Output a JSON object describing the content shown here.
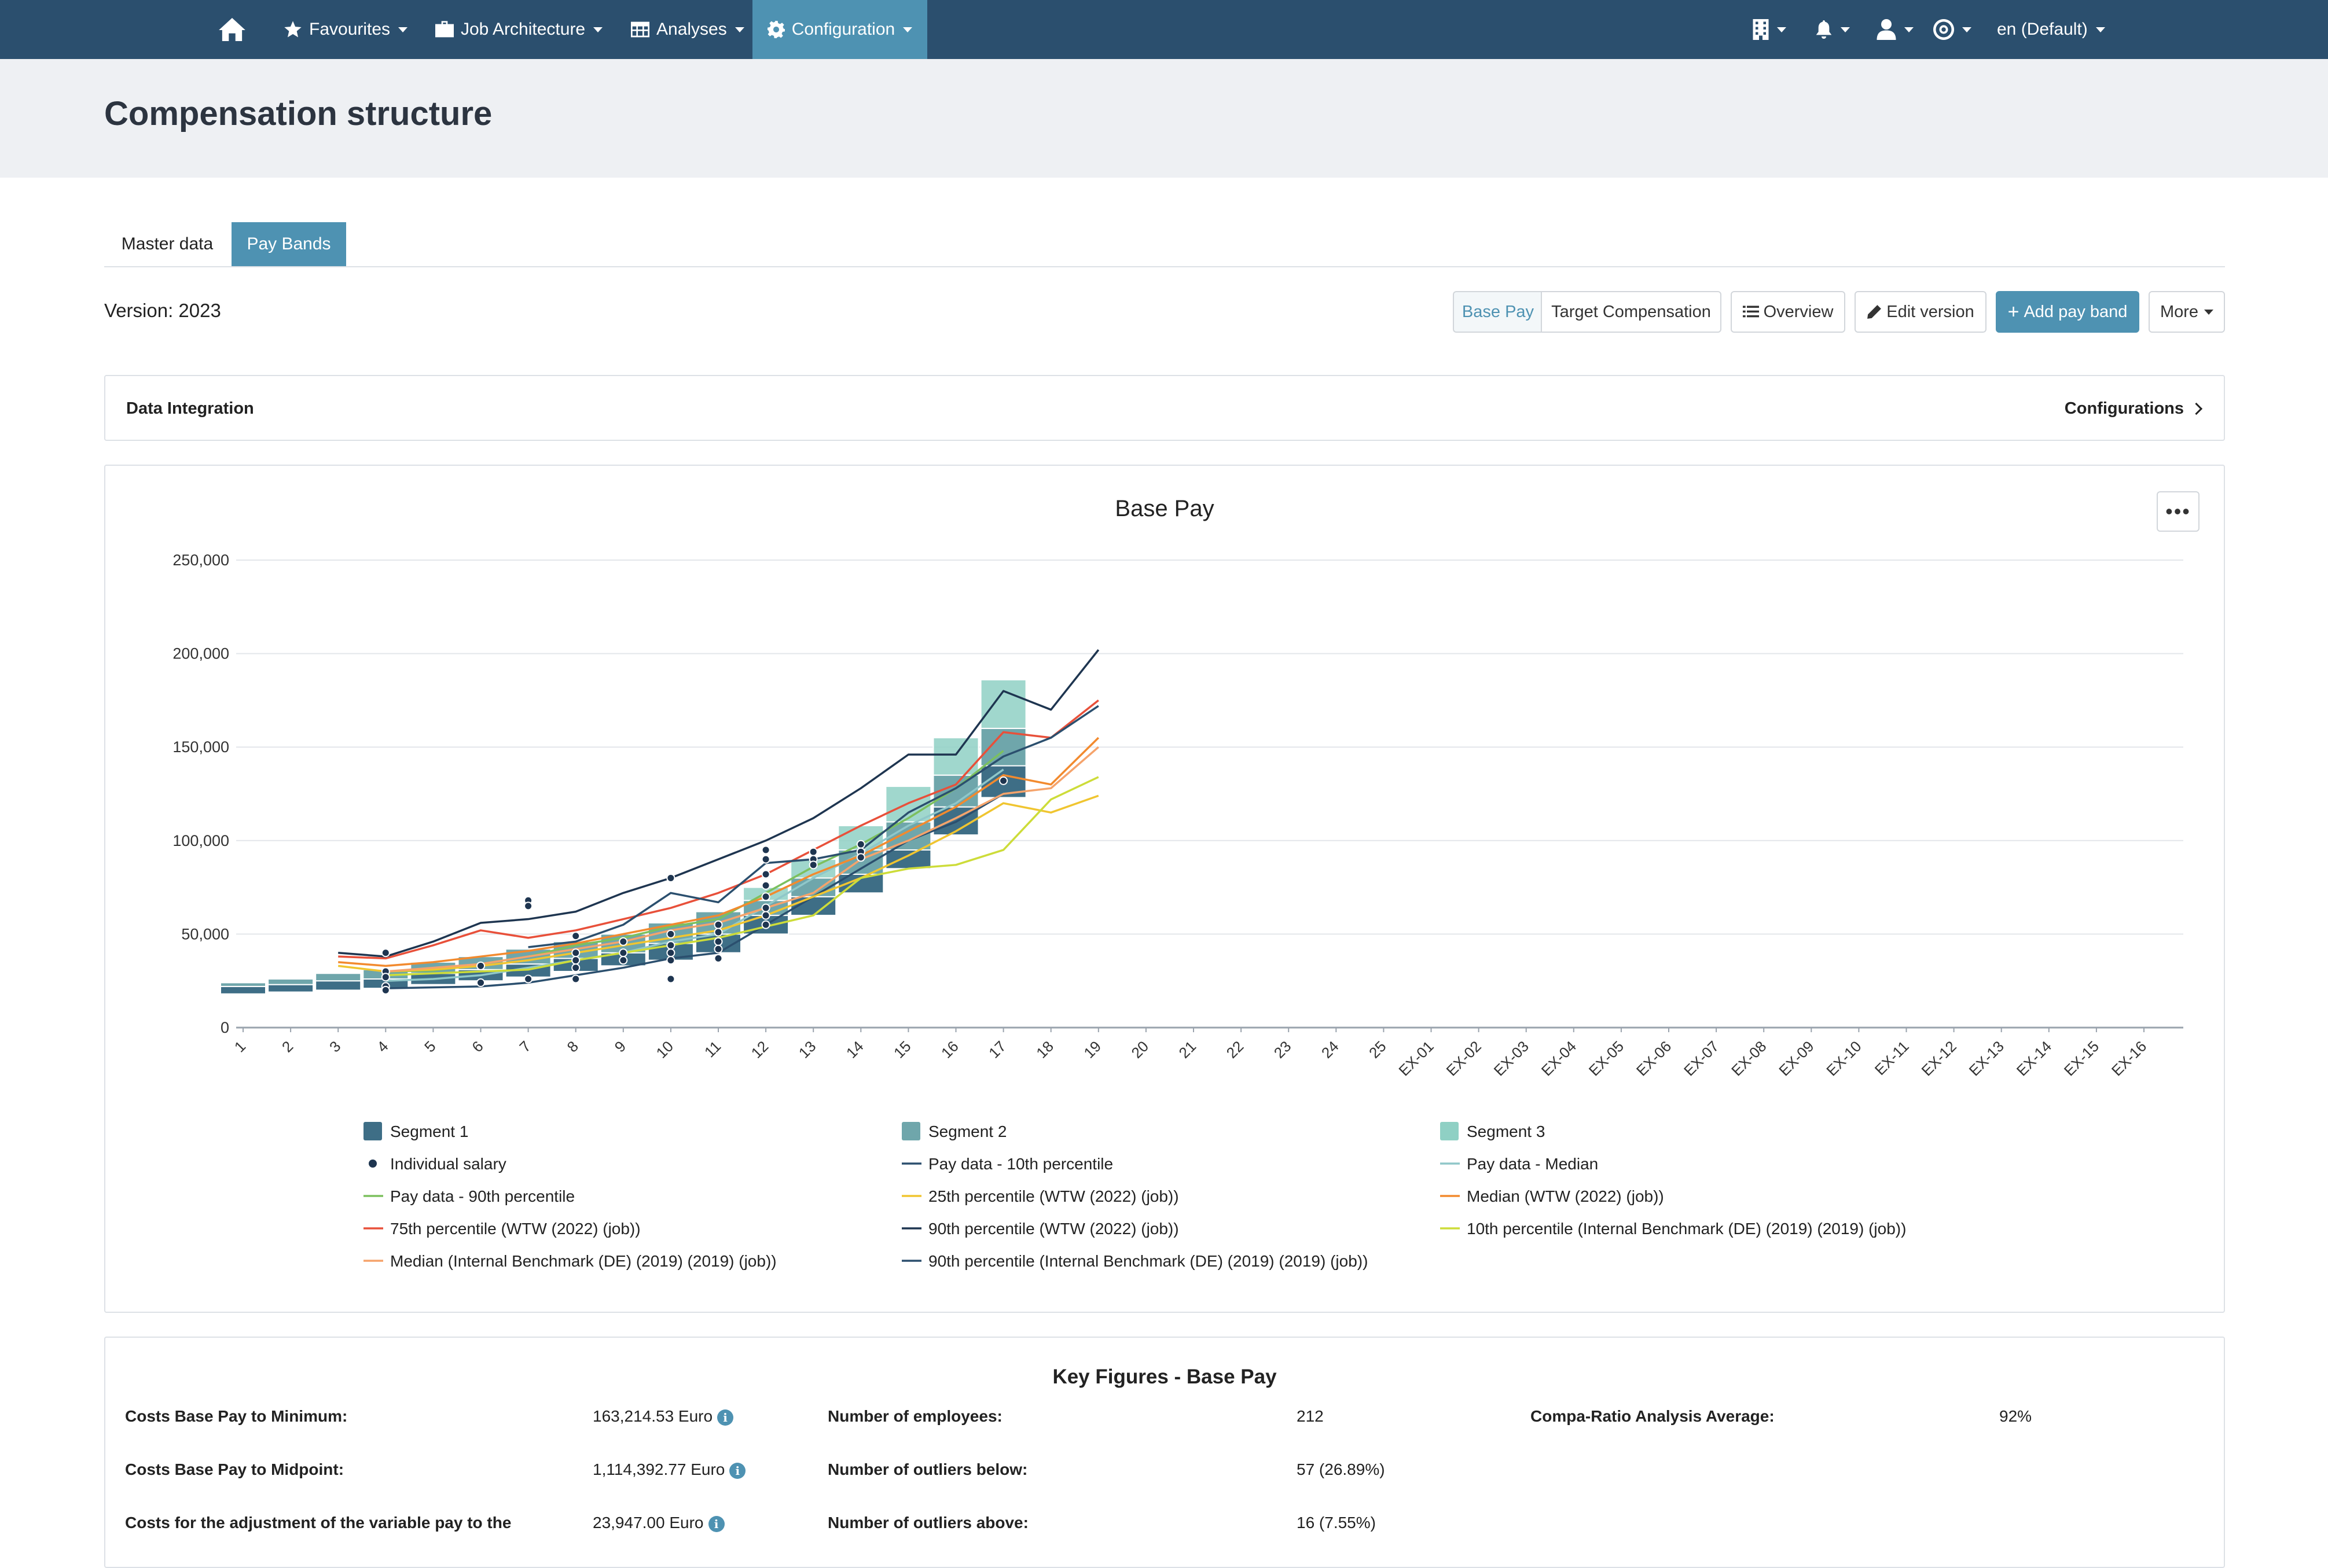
{
  "nav": {
    "items": [
      {
        "label": "Favourites",
        "icon": "star-icon"
      },
      {
        "label": "Job Architecture",
        "icon": "briefcase-icon"
      },
      {
        "label": "Analyses",
        "icon": "table-icon"
      },
      {
        "label": "Configuration",
        "icon": "gear-icon",
        "active": true
      }
    ],
    "language": "en (Default)",
    "right_icons": [
      "building-icon",
      "bell-icon",
      "user-icon",
      "help-circle-icon"
    ]
  },
  "page": {
    "title": "Compensation structure"
  },
  "tabs": [
    {
      "label": "Master data",
      "active": false
    },
    {
      "label": "Pay Bands",
      "active": true
    }
  ],
  "version_label": "Version: 2023",
  "toolbar": {
    "base_pay": "Base Pay",
    "target_comp": "Target Compensation",
    "overview": "Overview",
    "edit_version": "Edit version",
    "add_pay_band": "Add pay band",
    "more": "More"
  },
  "data_integration": {
    "title": "Data Integration",
    "link": "Configurations"
  },
  "chart_data": {
    "type": "bar",
    "title": "Base Pay",
    "ylim": [
      0,
      250000
    ],
    "yticks": [
      "250,000",
      "200,000",
      "150,000",
      "100,000",
      "50,000",
      "0"
    ],
    "ytick_values": [
      250000,
      200000,
      150000,
      100000,
      50000,
      0
    ],
    "categories": [
      "1",
      "2",
      "3",
      "4",
      "5",
      "6",
      "7",
      "8",
      "9",
      "10",
      "11",
      "12",
      "13",
      "14",
      "15",
      "16",
      "17",
      "18",
      "19",
      "20",
      "21",
      "22",
      "23",
      "24",
      "25",
      "EX-01",
      "EX-02",
      "EX-03",
      "EX-04",
      "EX-05",
      "EX-06",
      "EX-07",
      "EX-08",
      "EX-09",
      "EX-10",
      "EX-11",
      "EX-12",
      "EX-13",
      "EX-14",
      "EX-15",
      "EX-16"
    ],
    "bands": [
      {
        "grade": "1",
        "min": 18000,
        "s1": 22000,
        "s2": 24000,
        "max": 24000
      },
      {
        "grade": "2",
        "min": 19000,
        "s1": 23000,
        "s2": 26000,
        "max": 26000
      },
      {
        "grade": "3",
        "min": 20000,
        "s1": 25000,
        "s2": 29000,
        "max": 29000
      },
      {
        "grade": "4",
        "min": 21000,
        "s1": 26000,
        "s2": 31000,
        "max": 31000
      },
      {
        "grade": "5",
        "min": 23000,
        "s1": 29000,
        "s2": 35000,
        "max": 35000
      },
      {
        "grade": "6",
        "min": 25000,
        "s1": 31000,
        "s2": 38000,
        "max": 38000
      },
      {
        "grade": "7",
        "min": 27000,
        "s1": 34000,
        "s2": 42000,
        "max": 42000
      },
      {
        "grade": "8",
        "min": 30000,
        "s1": 37000,
        "s2": 46000,
        "max": 46000
      },
      {
        "grade": "9",
        "min": 33000,
        "s1": 40000,
        "s2": 50000,
        "max": 50000
      },
      {
        "grade": "10",
        "min": 36000,
        "s1": 45000,
        "s2": 56000,
        "max": 56000
      },
      {
        "grade": "11",
        "min": 40000,
        "s1": 50000,
        "s2": 62000,
        "max": 62000
      },
      {
        "grade": "12",
        "min": 50000,
        "s1": 60000,
        "s2": 68000,
        "max": 75000
      },
      {
        "grade": "13",
        "min": 60000,
        "s1": 70000,
        "s2": 80000,
        "max": 90000
      },
      {
        "grade": "14",
        "min": 72000,
        "s1": 82000,
        "s2": 95000,
        "max": 108000
      },
      {
        "grade": "15",
        "min": 85000,
        "s1": 95000,
        "s2": 110000,
        "max": 129000
      },
      {
        "grade": "16",
        "min": 103000,
        "s1": 118000,
        "s2": 135000,
        "max": 155000
      },
      {
        "grade": "17",
        "min": 123000,
        "s1": 140000,
        "s2": 160000,
        "max": 186000
      }
    ],
    "series": [
      {
        "name": "Pay data - 10th percentile",
        "color": "#2b4f6e",
        "x": [
          "4",
          "5",
          "6",
          "7",
          "8",
          "9",
          "10",
          "11",
          "12",
          "13",
          "14",
          "15",
          "16",
          "17"
        ],
        "values": [
          21000,
          21500,
          22000,
          24000,
          28000,
          32000,
          37000,
          40000,
          55000,
          70000,
          85000,
          100000,
          110000,
          125000
        ]
      },
      {
        "name": "Pay data - Median",
        "color": "#8fc7c9",
        "x": [
          "4",
          "5",
          "6",
          "7",
          "8",
          "9",
          "10",
          "11",
          "12",
          "13",
          "14",
          "15",
          "16",
          "17"
        ],
        "values": [
          25000,
          26000,
          28000,
          32000,
          36000,
          40000,
          46000,
          50000,
          65000,
          80000,
          93000,
          108000,
          120000,
          138000
        ]
      },
      {
        "name": "Pay data - 90th percentile",
        "color": "#7cc05e",
        "x": [
          "4",
          "5",
          "6",
          "7",
          "8",
          "9",
          "10",
          "11",
          "12",
          "13",
          "14",
          "15",
          "16",
          "17"
        ],
        "values": [
          30000,
          30500,
          34000,
          38000,
          44000,
          48000,
          54000,
          58000,
          72000,
          86000,
          98000,
          112000,
          128000,
          148000
        ]
      },
      {
        "name": "25th percentile (WTW (2022) (job))",
        "color": "#f0c530",
        "x": [
          "3",
          "4",
          "5",
          "6",
          "7",
          "8",
          "9",
          "10",
          "11",
          "12",
          "13",
          "14",
          "15",
          "16",
          "17",
          "18",
          "19"
        ],
        "values": [
          33000,
          30000,
          31000,
          33000,
          36000,
          40000,
          44000,
          48000,
          52000,
          60000,
          70000,
          80000,
          92000,
          105000,
          120000,
          115000,
          124000
        ]
      },
      {
        "name": "Median (WTW (2022) (job))",
        "color": "#f28a2e",
        "x": [
          "3",
          "4",
          "5",
          "6",
          "7",
          "8",
          "9",
          "10",
          "11",
          "12",
          "13",
          "14",
          "15",
          "16",
          "17",
          "18",
          "19"
        ],
        "values": [
          35000,
          33000,
          35000,
          38000,
          41000,
          45000,
          50000,
          55000,
          60000,
          70000,
          82000,
          92000,
          105000,
          118000,
          135000,
          130000,
          155000
        ]
      },
      {
        "name": "75th percentile (WTW (2022) (job))",
        "color": "#e8503a",
        "x": [
          "3",
          "4",
          "5",
          "6",
          "7",
          "8",
          "9",
          "10",
          "11",
          "12",
          "13",
          "14",
          "15",
          "16",
          "17",
          "18",
          "19"
        ],
        "values": [
          38000,
          37000,
          44000,
          52000,
          48000,
          52000,
          58000,
          64000,
          72000,
          82000,
          95000,
          108000,
          120000,
          130000,
          158000,
          155000,
          175000
        ]
      },
      {
        "name": "90th percentile (WTW (2022) (job))",
        "color": "#1e3550",
        "x": [
          "3",
          "4",
          "5",
          "6",
          "7",
          "8",
          "9",
          "10",
          "11",
          "12",
          "13",
          "14",
          "15",
          "16",
          "17",
          "18",
          "19"
        ],
        "values": [
          40000,
          38000,
          46000,
          56000,
          58000,
          62000,
          72000,
          80000,
          90000,
          100000,
          112000,
          128000,
          146000,
          146000,
          180000,
          170000,
          202000
        ]
      },
      {
        "name": "10th percentile (Internal Benchmark (DE) (2019) (2019) (job))",
        "color": "#cddc39",
        "x": [
          "4",
          "5",
          "6",
          "7",
          "8",
          "9",
          "10",
          "11",
          "12",
          "13",
          "14",
          "15",
          "16",
          "17",
          "18",
          "19"
        ],
        "values": [
          28000,
          29000,
          30000,
          31000,
          36000,
          40000,
          44000,
          48000,
          54000,
          60000,
          80000,
          85000,
          87000,
          95000,
          122000,
          134000
        ]
      },
      {
        "name": "Median (Internal Benchmark (DE) (2019) (2019) (job))",
        "color": "#f5a36b",
        "x": [
          "4",
          "5",
          "6",
          "7",
          "8",
          "9",
          "10",
          "11",
          "12",
          "13",
          "14",
          "15",
          "16",
          "17",
          "18",
          "19"
        ],
        "values": [
          30000,
          32000,
          34000,
          38000,
          42000,
          46000,
          52000,
          56000,
          64000,
          72000,
          90000,
          100000,
          112000,
          125000,
          128000,
          150000
        ]
      },
      {
        "name": "90th percentile (Internal Benchmark (DE) (2019) (2019) (job))",
        "color": "#2b4f6e",
        "x": [
          "7",
          "8",
          "9",
          "10",
          "11",
          "12",
          "13",
          "14",
          "15",
          "16",
          "17",
          "18",
          "19"
        ],
        "values": [
          43000,
          46000,
          55000,
          72000,
          67000,
          88000,
          90000,
          95000,
          115000,
          128000,
          145000,
          155000,
          172000
        ]
      }
    ],
    "individual_salaries": [
      [
        "4",
        40000
      ],
      [
        "4",
        30000
      ],
      [
        "4",
        27000
      ],
      [
        "4",
        22000
      ],
      [
        "4",
        20000
      ],
      [
        "6",
        33000
      ],
      [
        "6",
        24000
      ],
      [
        "7",
        68000
      ],
      [
        "7",
        65000
      ],
      [
        "7",
        26000
      ],
      [
        "8",
        49000
      ],
      [
        "8",
        40000
      ],
      [
        "8",
        36000
      ],
      [
        "8",
        32000
      ],
      [
        "8",
        26000
      ],
      [
        "9",
        46000
      ],
      [
        "9",
        40000
      ],
      [
        "9",
        36000
      ],
      [
        "10",
        80000
      ],
      [
        "10",
        50000
      ],
      [
        "10",
        44000
      ],
      [
        "10",
        40000
      ],
      [
        "10",
        36000
      ],
      [
        "10",
        26000
      ],
      [
        "11",
        55000
      ],
      [
        "11",
        51000
      ],
      [
        "11",
        46000
      ],
      [
        "11",
        42000
      ],
      [
        "11",
        37000
      ],
      [
        "12",
        95000
      ],
      [
        "12",
        90000
      ],
      [
        "12",
        82000
      ],
      [
        "12",
        76000
      ],
      [
        "12",
        70000
      ],
      [
        "12",
        64000
      ],
      [
        "12",
        60000
      ],
      [
        "12",
        55000
      ],
      [
        "13",
        94000
      ],
      [
        "13",
        90000
      ],
      [
        "13",
        87000
      ],
      [
        "14",
        98000
      ],
      [
        "14",
        94000
      ],
      [
        "14",
        91000
      ],
      [
        "17",
        132000
      ]
    ],
    "legend": [
      {
        "label": "Segment 1",
        "type": "box",
        "color": "#3e6e86"
      },
      {
        "label": "Segment 2",
        "type": "box",
        "color": "#6fa6ab"
      },
      {
        "label": "Segment 3",
        "type": "box",
        "color": "#8fd0c4"
      },
      {
        "label": "Individual salary",
        "type": "dot",
        "color": "#1e3550"
      },
      {
        "label": "Pay data - 10th percentile",
        "type": "line",
        "color": "#2b4f6e"
      },
      {
        "label": "Pay data - Median",
        "type": "line",
        "color": "#8fc7c9"
      },
      {
        "label": "Pay data - 90th percentile",
        "type": "line",
        "color": "#7cc05e"
      },
      {
        "label": "25th percentile (WTW (2022) (job))",
        "type": "line",
        "color": "#f0c530"
      },
      {
        "label": "Median (WTW (2022) (job))",
        "type": "line",
        "color": "#f28a2e"
      },
      {
        "label": "75th percentile (WTW (2022) (job))",
        "type": "line",
        "color": "#e8503a"
      },
      {
        "label": "90th percentile (WTW (2022) (job))",
        "type": "line",
        "color": "#1e3550"
      },
      {
        "label": "10th percentile (Internal Benchmark (DE) (2019) (2019) (job))",
        "type": "line",
        "color": "#cddc39"
      },
      {
        "label": "Median (Internal Benchmark (DE) (2019) (2019) (job))",
        "type": "line",
        "color": "#f5a36b"
      },
      {
        "label": "90th percentile (Internal Benchmark (DE) (2019) (2019) (job))",
        "type": "line",
        "color": "#2b4f6e"
      }
    ]
  },
  "key_figures": {
    "title": "Key Figures - Base Pay",
    "items": [
      {
        "label": "Costs Base Pay to Minimum:",
        "value": "163,214.53 Euro",
        "info": true
      },
      {
        "label": "Costs Base Pay to Midpoint:",
        "value": "1,114,392.77 Euro",
        "info": true
      },
      {
        "label": "Costs for the adjustment of the variable pay to the",
        "value": "23,947.00 Euro",
        "info": true
      },
      {
        "label": "Number of employees:",
        "value": "212"
      },
      {
        "label": "Number of outliers below:",
        "value": "57 (26.89%)"
      },
      {
        "label": "Number of outliers above:",
        "value": "16 (7.55%)"
      },
      {
        "label": "Compa-Ratio Analysis Average:",
        "value": "92%"
      }
    ]
  },
  "colors": {
    "nav_bg": "#2b4f6e",
    "accent": "#4e92b2",
    "header_bg": "#eef0f3"
  }
}
